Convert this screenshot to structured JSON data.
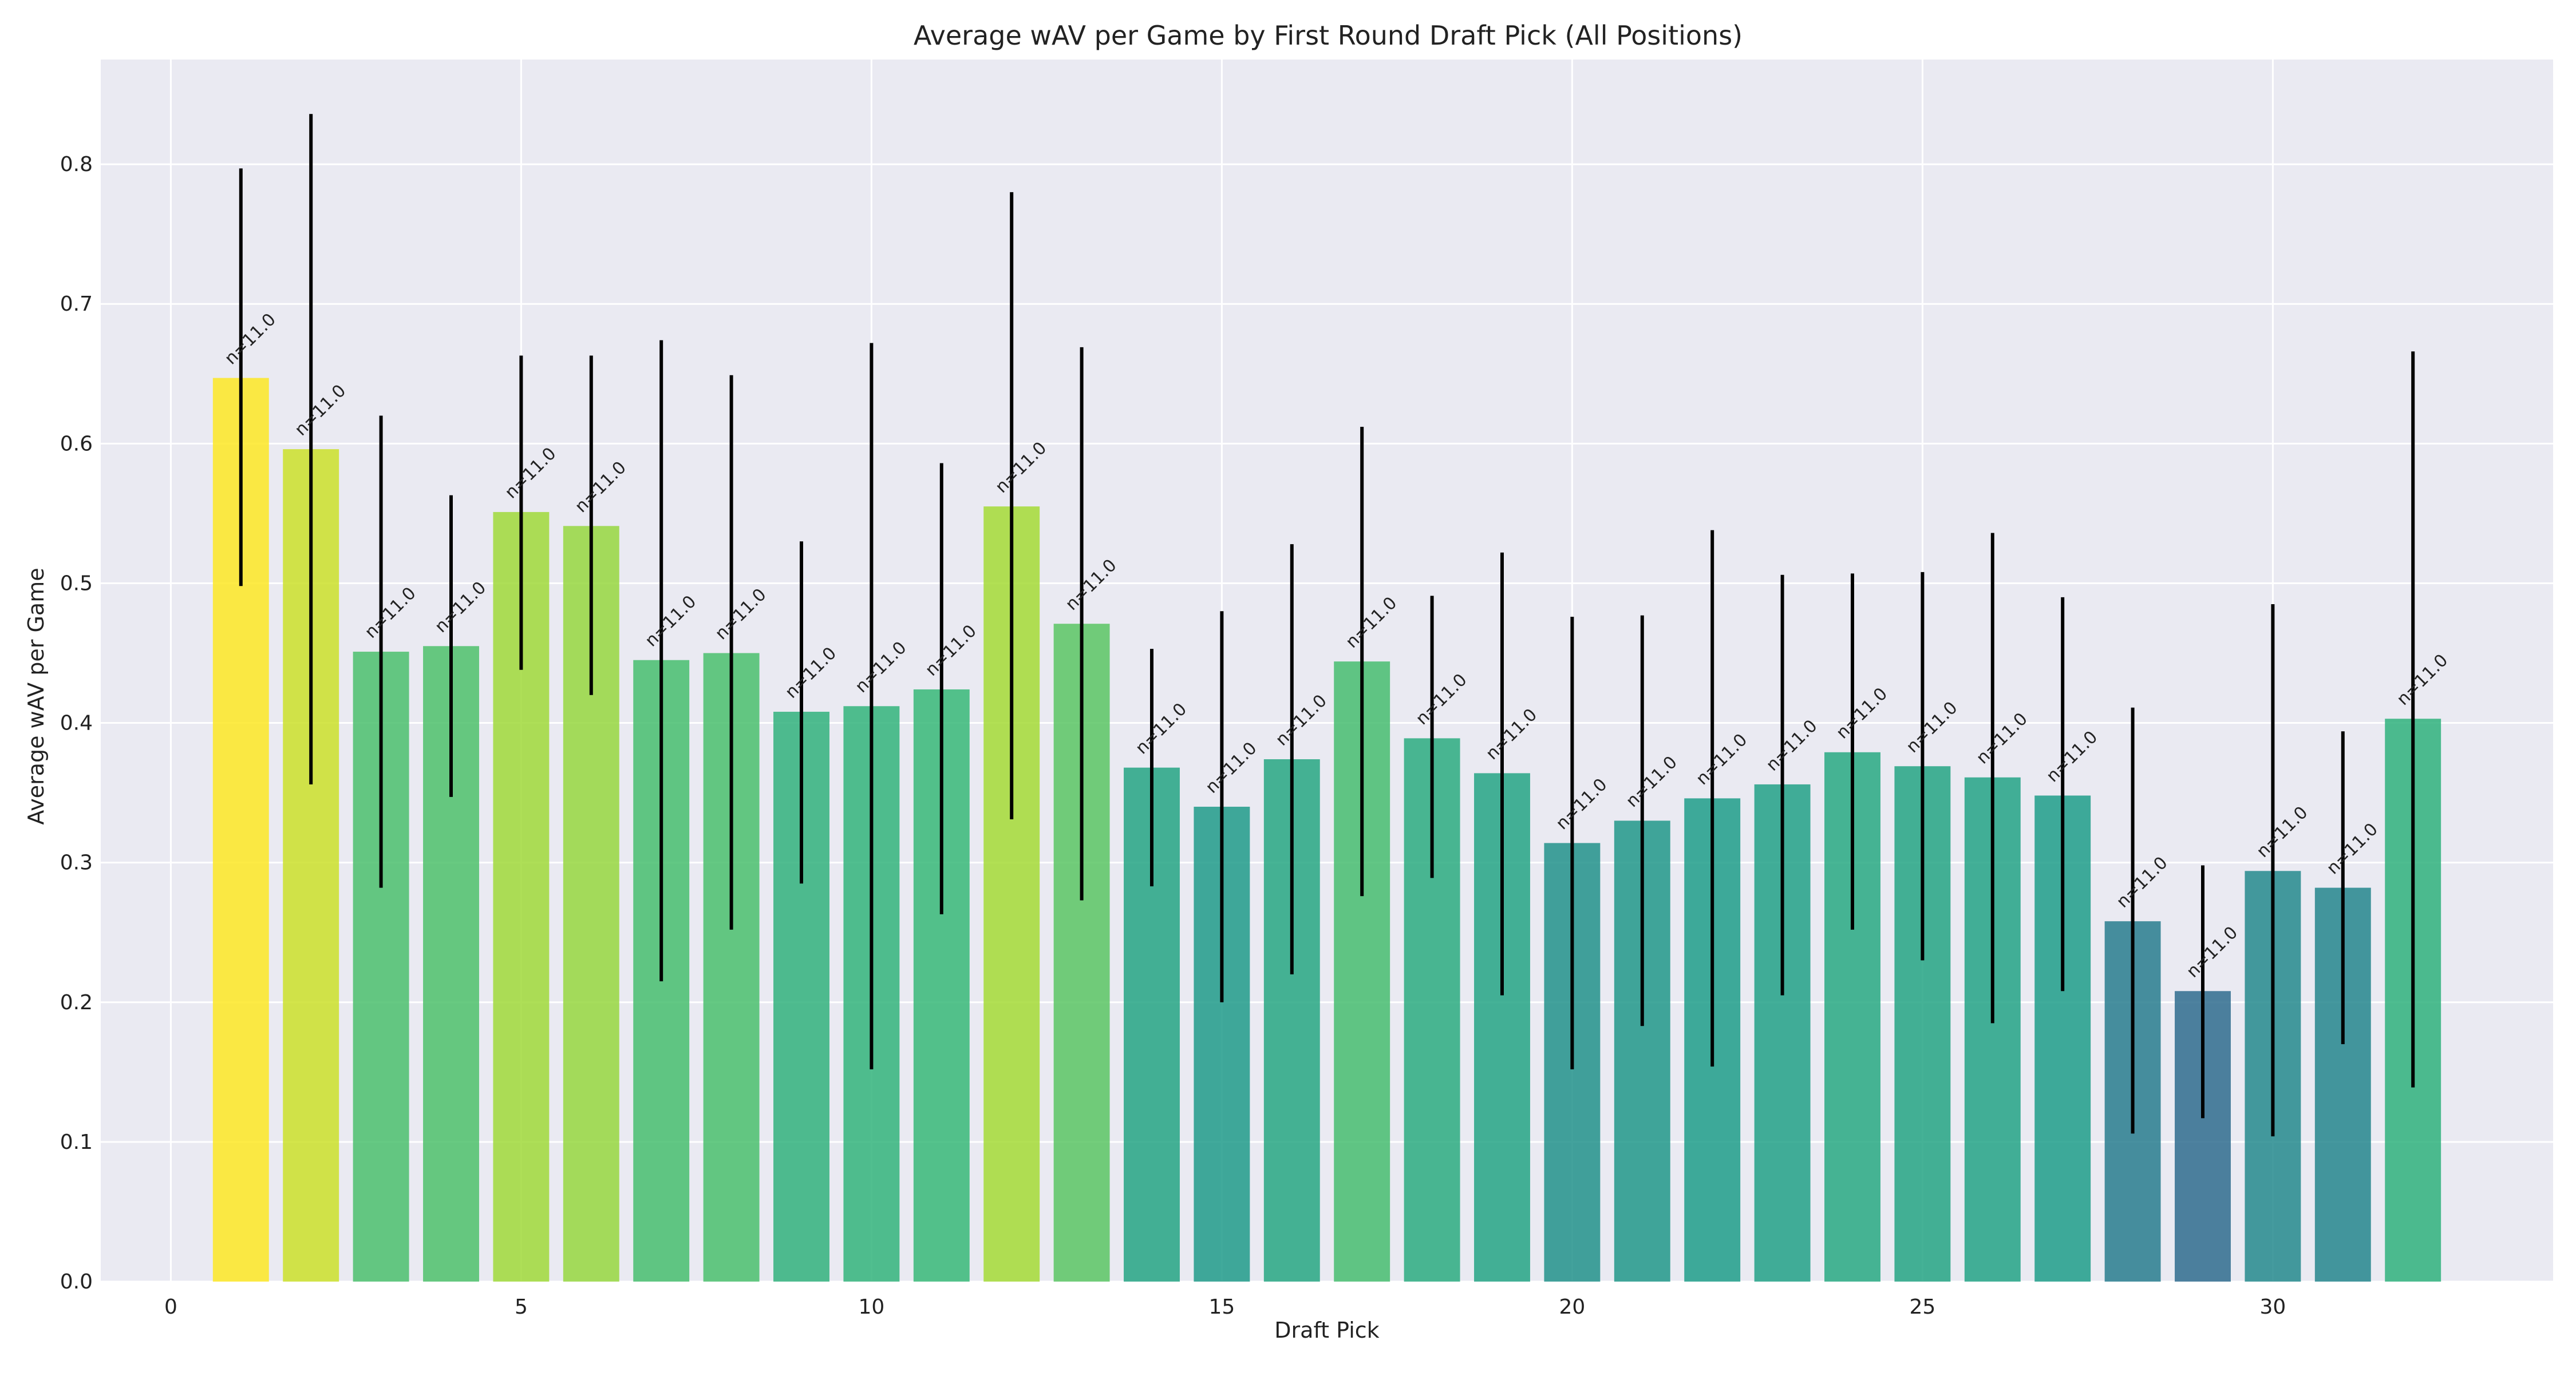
{
  "chart_data": {
    "type": "bar",
    "title": "Average wAV per Game by First Round Draft Pick (All Positions)",
    "xlabel": "Draft Pick",
    "ylabel": "Average wAV per Game",
    "xlim": [
      -1,
      34
    ],
    "ylim": [
      0,
      0.875
    ],
    "xticks": [
      0,
      5,
      10,
      15,
      20,
      25,
      30
    ],
    "yticks": [
      0.0,
      0.1,
      0.2,
      0.3,
      0.4,
      0.5,
      0.6,
      0.7,
      0.8
    ],
    "grid": true,
    "background": "#eaeaf2",
    "picks": [
      1,
      2,
      3,
      4,
      5,
      6,
      7,
      8,
      9,
      10,
      11,
      12,
      13,
      14,
      15,
      16,
      17,
      18,
      19,
      20,
      21,
      22,
      23,
      24,
      25,
      26,
      27,
      28,
      29,
      30,
      31,
      32
    ],
    "values": [
      0.647,
      0.596,
      0.451,
      0.455,
      0.551,
      0.541,
      0.445,
      0.45,
      0.408,
      0.412,
      0.424,
      0.555,
      0.471,
      0.368,
      0.34,
      0.374,
      0.444,
      0.389,
      0.364,
      0.314,
      0.33,
      0.346,
      0.356,
      0.379,
      0.369,
      0.361,
      0.348,
      0.258,
      0.208,
      0.294,
      0.282,
      0.403
    ],
    "err_low": [
      0.498,
      0.356,
      0.282,
      0.347,
      0.438,
      0.42,
      0.215,
      0.252,
      0.285,
      0.152,
      0.263,
      0.331,
      0.273,
      0.283,
      0.2,
      0.22,
      0.276,
      0.289,
      0.205,
      0.152,
      0.183,
      0.154,
      0.205,
      0.252,
      0.23,
      0.185,
      0.208,
      0.106,
      0.117,
      0.104,
      0.17,
      0.139
    ],
    "err_high": [
      0.797,
      0.836,
      0.62,
      0.563,
      0.663,
      0.663,
      0.674,
      0.649,
      0.53,
      0.672,
      0.586,
      0.78,
      0.669,
      0.453,
      0.48,
      0.528,
      0.612,
      0.491,
      0.522,
      0.476,
      0.477,
      0.538,
      0.506,
      0.507,
      0.508,
      0.536,
      0.49,
      0.411,
      0.298,
      0.485,
      0.394,
      0.666
    ],
    "bar_labels": [
      "n=11.0",
      "n=11.0",
      "n=11.0",
      "n=11.0",
      "n=11.0",
      "n=11.0",
      "n=11.0",
      "n=11.0",
      "n=11.0",
      "n=11.0",
      "n=11.0",
      "n=11.0",
      "n=11.0",
      "n=11.0",
      "n=11.0",
      "n=11.0",
      "n=11.0",
      "n=11.0",
      "n=11.0",
      "n=11.0",
      "n=11.0",
      "n=11.0",
      "n=11.0",
      "n=11.0",
      "n=11.0",
      "n=11.0",
      "n=11.0",
      "n=11.0",
      "n=11.0",
      "n=11.0",
      "n=11.0",
      "n=11.0"
    ],
    "colormap": "viridis"
  }
}
